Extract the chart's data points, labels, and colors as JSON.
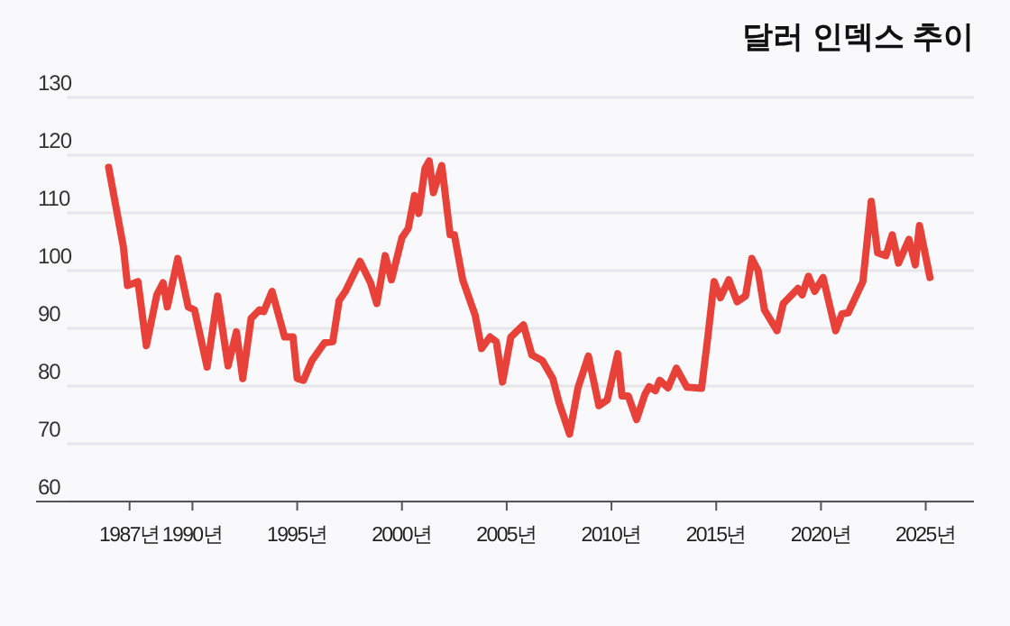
{
  "chart_data": {
    "type": "line",
    "title": "달러 인덱스 추이",
    "x": [
      1986.0,
      1986.7,
      1986.9,
      1987.4,
      1987.8,
      1988.3,
      1988.6,
      1988.8,
      1989.3,
      1989.8,
      1990.1,
      1990.7,
      1991.2,
      1991.7,
      1992.1,
      1992.4,
      1992.8,
      1993.2,
      1993.4,
      1993.8,
      1994.4,
      1994.8,
      1995.0,
      1995.3,
      1995.7,
      1996.3,
      1996.7,
      1997.0,
      1997.3,
      1998.0,
      1998.5,
      1998.8,
      1999.2,
      1999.5,
      2000.0,
      2000.3,
      2000.6,
      2000.8,
      2001.1,
      2001.3,
      2001.5,
      2001.9,
      2002.3,
      2002.5,
      2002.9,
      2003.5,
      2003.8,
      2004.2,
      2004.5,
      2004.8,
      2005.2,
      2005.8,
      2006.2,
      2006.7,
      2007.2,
      2007.5,
      2008.0,
      2008.4,
      2008.9,
      2009.4,
      2009.8,
      2010.3,
      2010.5,
      2010.8,
      2011.2,
      2011.6,
      2011.8,
      2012.1,
      2012.3,
      2012.7,
      2013.1,
      2013.6,
      2014.3,
      2014.6,
      2014.9,
      2015.2,
      2015.6,
      2016.0,
      2016.4,
      2016.7,
      2017.0,
      2017.3,
      2017.9,
      2018.2,
      2018.9,
      2019.1,
      2019.4,
      2019.7,
      2020.1,
      2020.7,
      2021.0,
      2021.3,
      2022.0,
      2022.4,
      2022.7,
      2023.1,
      2023.4,
      2023.7,
      2024.2,
      2024.5,
      2024.7,
      2025.2
    ],
    "series": [
      {
        "color": "#e8413a",
        "values": [
          117.9,
          104.2,
          97.4,
          98.1,
          87.0,
          95.8,
          97.9,
          93.7,
          102.1,
          93.7,
          93.2,
          83.3,
          95.6,
          83.5,
          89.4,
          81.3,
          91.7,
          93.2,
          92.9,
          96.4,
          88.5,
          88.5,
          81.3,
          81.0,
          84.4,
          87.5,
          87.7,
          94.8,
          96.4,
          101.6,
          97.9,
          94.3,
          102.6,
          98.4,
          105.7,
          107.3,
          113.0,
          109.9,
          117.7,
          119.0,
          113.5,
          118.2,
          106.2,
          106.2,
          98.4,
          92.2,
          86.5,
          88.5,
          87.7,
          80.7,
          88.5,
          90.6,
          85.4,
          84.4,
          81.3,
          77.1,
          71.7,
          79.7,
          85.2,
          76.6,
          77.6,
          85.6,
          78.3,
          78.3,
          74.2,
          78.6,
          79.9,
          79.2,
          81.0,
          79.7,
          83.1,
          79.8,
          79.6,
          88.5,
          98.1,
          95.3,
          98.4,
          94.6,
          95.6,
          102.1,
          100.0,
          93.2,
          89.6,
          94.3,
          96.9,
          95.8,
          99.0,
          96.4,
          98.8,
          89.6,
          92.5,
          92.7,
          98.1,
          112.0,
          103.1,
          102.6,
          106.2,
          101.3,
          105.4,
          101.0,
          107.8,
          98.8
        ]
      }
    ],
    "xlim": [
      1984.0,
      2027.3
    ],
    "xticks": [
      {
        "value": 1987,
        "label": "1987년"
      },
      {
        "value": 1990,
        "label": "1990년"
      },
      {
        "value": 1995,
        "label": "1995년"
      },
      {
        "value": 2000,
        "label": "2000년"
      },
      {
        "value": 2005,
        "label": "2005년"
      },
      {
        "value": 2010,
        "label": "2010년"
      },
      {
        "value": 2015,
        "label": "2015년"
      },
      {
        "value": 2020,
        "label": "2020년"
      },
      {
        "value": 2025,
        "label": "2025년"
      }
    ],
    "ylim": [
      60,
      130
    ],
    "yticks": [
      60,
      70,
      80,
      90,
      100,
      110,
      120,
      130
    ],
    "grid": "y",
    "line_style": "solid",
    "marker": "none"
  }
}
